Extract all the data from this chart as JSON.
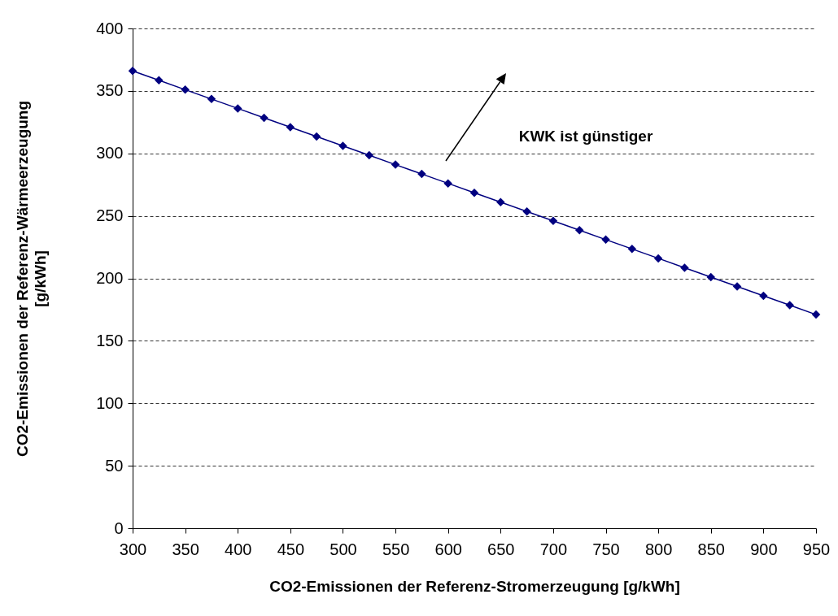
{
  "chart_data": {
    "type": "line",
    "xlabel": "CO2-Emissionen der Referenz-Stromerzeugung [g/kWh]",
    "ylabel": "CO2-Emissionen der Referenz-Wärmeerzeugung\n[g/kWh]",
    "x": [
      300,
      325,
      350,
      375,
      400,
      425,
      450,
      475,
      500,
      525,
      550,
      575,
      600,
      625,
      650,
      675,
      700,
      725,
      750,
      775,
      800,
      825,
      850,
      875,
      900,
      925,
      950
    ],
    "series": [
      {
        "color": "#000080",
        "values": [
          366,
          358.5,
          351,
          343.5,
          336,
          328.5,
          321,
          313.5,
          306,
          298.5,
          291,
          283.5,
          276,
          268.5,
          261,
          253.5,
          246,
          238.5,
          231,
          223.5,
          216,
          208.5,
          201,
          193.5,
          186,
          178.5,
          171
        ]
      }
    ],
    "xlim": [
      300,
      950
    ],
    "xticks": [
      300,
      350,
      400,
      450,
      500,
      550,
      600,
      650,
      700,
      750,
      800,
      850,
      900,
      950
    ],
    "ylim": [
      0,
      400
    ],
    "yticks": [
      0,
      50,
      100,
      150,
      200,
      250,
      300,
      350,
      400
    ],
    "grid": "y",
    "marker": "diamond",
    "line_style": "solid",
    "annotations": [
      "KWK ist günstiger"
    ]
  }
}
